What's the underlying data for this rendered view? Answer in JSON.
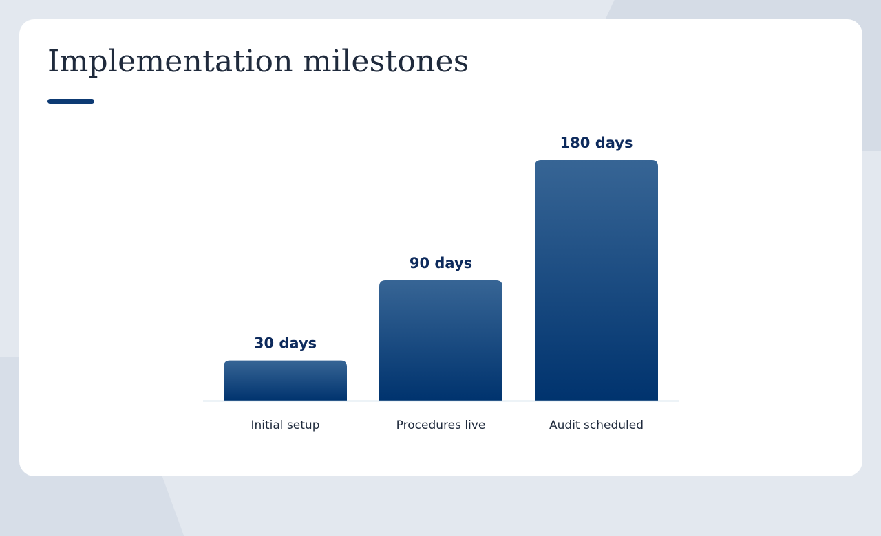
{
  "slide": {
    "title": "Implementation milestones",
    "accent_color": "#0d3a73"
  },
  "chart_data": {
    "type": "bar",
    "categories": [
      "Initial setup",
      "Procedures live",
      "Audit scheduled"
    ],
    "values": [
      30,
      90,
      180
    ],
    "value_labels": [
      "30 days",
      "90 days",
      "180 days"
    ],
    "ylim": [
      0,
      180
    ],
    "grid": false,
    "bar_color_top": "#376595",
    "bar_color_bottom": "#00336e",
    "label_color": "#0d2a5c",
    "baseline_color": "#b8cfe0"
  }
}
